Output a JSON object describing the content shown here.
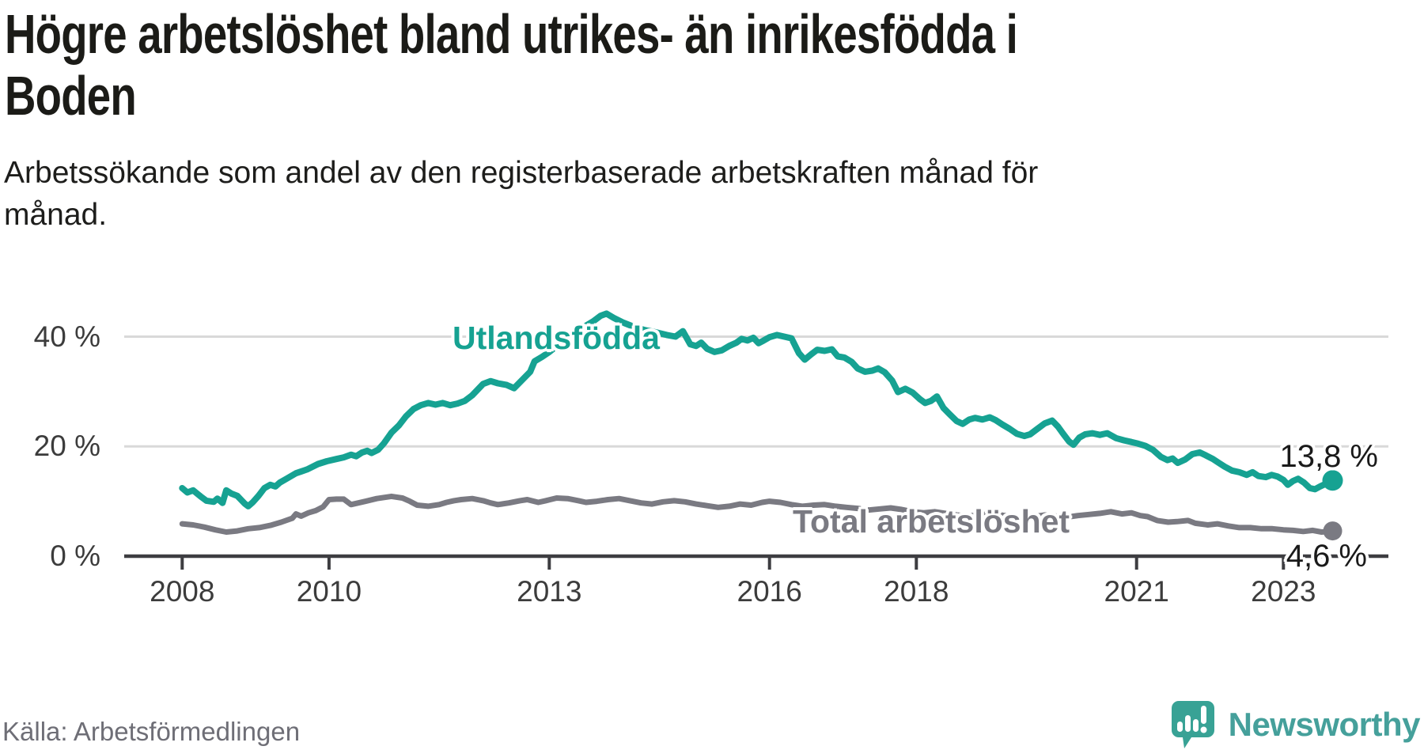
{
  "title": "Högre arbetslöshet bland utrikes- än inrikesfödda i Boden",
  "title_lines": {
    "line1": "Högre arbetslöshet bland utrikes- än inrikesfödda i",
    "line2": "Boden"
  },
  "subtitle_lines": {
    "line1": "Arbetssökande som andel av den registerbaserade arbetskraften månad för",
    "line2": "månad."
  },
  "source": "Källa: Arbetsförmedlingen",
  "brand": {
    "name": "Newsworthy",
    "logo_color": "#38a295",
    "text_color": "#45a09b"
  },
  "colors": {
    "accent_teal": "#16a292",
    "series_gray": "#7a7a82",
    "axis": "#3d3d41",
    "grid": "#d9d9d9",
    "text": "#1d1d1b",
    "tick_text": "#3c3c3c"
  },
  "chart_data": {
    "type": "line",
    "title": "Högre arbetslöshet bland utrikes- än inrikesfödda i Boden",
    "xlabel": "",
    "ylabel": "Arbetssökande som andel av den registerbaserade arbetskraften",
    "grid": "horizontal-only",
    "legend_position": "inline-labels",
    "x_axis": {
      "range_years": [
        2008.0,
        2024.4
      ],
      "ticks": [
        2008,
        2010,
        2013,
        2016,
        2018,
        2021,
        2023
      ],
      "labels": [
        "2008",
        "2010",
        "2013",
        "2016",
        "2018",
        "2021",
        "2023"
      ]
    },
    "y_axis": {
      "range": [
        0,
        45
      ],
      "ticks": [
        0,
        20,
        40
      ],
      "labels": [
        "0 %",
        "20 %",
        "40 %"
      ],
      "unit": "%"
    },
    "series": [
      {
        "id": "utlandsfodda",
        "name": "Utlandsfödda",
        "color": "#16a292",
        "end_label": "13,8 %",
        "end_value": 13.8,
        "points": [
          [
            2008.0,
            12.4
          ],
          [
            2008.07,
            11.6
          ],
          [
            2008.15,
            12.0
          ],
          [
            2008.25,
            10.9
          ],
          [
            2008.33,
            10.1
          ],
          [
            2008.43,
            9.9
          ],
          [
            2008.48,
            10.5
          ],
          [
            2008.55,
            9.7
          ],
          [
            2008.6,
            12.0
          ],
          [
            2008.67,
            11.4
          ],
          [
            2008.75,
            11.0
          ],
          [
            2008.8,
            10.3
          ],
          [
            2008.85,
            9.6
          ],
          [
            2008.9,
            9.1
          ],
          [
            2008.96,
            9.8
          ],
          [
            2009.04,
            11.0
          ],
          [
            2009.12,
            12.4
          ],
          [
            2009.2,
            13.0
          ],
          [
            2009.27,
            12.7
          ],
          [
            2009.33,
            13.4
          ],
          [
            2009.42,
            14.1
          ],
          [
            2009.55,
            15.1
          ],
          [
            2009.7,
            15.8
          ],
          [
            2009.85,
            16.8
          ],
          [
            2009.97,
            17.3
          ],
          [
            2010.1,
            17.7
          ],
          [
            2010.2,
            18.0
          ],
          [
            2010.3,
            18.5
          ],
          [
            2010.37,
            18.2
          ],
          [
            2010.45,
            18.9
          ],
          [
            2010.52,
            19.2
          ],
          [
            2010.58,
            18.8
          ],
          [
            2010.67,
            19.4
          ],
          [
            2010.75,
            20.6
          ],
          [
            2010.85,
            22.5
          ],
          [
            2010.95,
            23.8
          ],
          [
            2011.05,
            25.5
          ],
          [
            2011.15,
            26.8
          ],
          [
            2011.25,
            27.5
          ],
          [
            2011.35,
            27.9
          ],
          [
            2011.45,
            27.6
          ],
          [
            2011.55,
            27.9
          ],
          [
            2011.65,
            27.5
          ],
          [
            2011.75,
            27.8
          ],
          [
            2011.85,
            28.3
          ],
          [
            2011.95,
            29.3
          ],
          [
            2012.1,
            31.4
          ],
          [
            2012.2,
            31.9
          ],
          [
            2012.3,
            31.5
          ],
          [
            2012.42,
            31.2
          ],
          [
            2012.52,
            30.6
          ],
          [
            2012.63,
            32.1
          ],
          [
            2012.74,
            33.6
          ],
          [
            2012.8,
            35.5
          ],
          [
            2012.9,
            36.3
          ],
          [
            2013.0,
            37.2
          ],
          [
            2013.15,
            38.8
          ],
          [
            2013.3,
            40.2
          ],
          [
            2013.45,
            41.6
          ],
          [
            2013.6,
            42.8
          ],
          [
            2013.7,
            43.8
          ],
          [
            2013.78,
            44.2
          ],
          [
            2013.88,
            43.4
          ],
          [
            2014.0,
            42.6
          ],
          [
            2014.15,
            41.8
          ],
          [
            2014.3,
            41.2
          ],
          [
            2014.45,
            40.8
          ],
          [
            2014.6,
            40.3
          ],
          [
            2014.72,
            40.0
          ],
          [
            2014.82,
            41.0
          ],
          [
            2014.92,
            38.6
          ],
          [
            2015.0,
            38.3
          ],
          [
            2015.07,
            38.9
          ],
          [
            2015.15,
            37.8
          ],
          [
            2015.25,
            37.2
          ],
          [
            2015.35,
            37.5
          ],
          [
            2015.45,
            38.3
          ],
          [
            2015.55,
            38.9
          ],
          [
            2015.62,
            39.6
          ],
          [
            2015.7,
            39.3
          ],
          [
            2015.78,
            39.8
          ],
          [
            2015.85,
            38.8
          ],
          [
            2015.92,
            39.3
          ],
          [
            2016.0,
            39.9
          ],
          [
            2016.1,
            40.3
          ],
          [
            2016.2,
            40.0
          ],
          [
            2016.3,
            39.7
          ],
          [
            2016.4,
            37.0
          ],
          [
            2016.48,
            35.8
          ],
          [
            2016.57,
            36.8
          ],
          [
            2016.65,
            37.6
          ],
          [
            2016.75,
            37.4
          ],
          [
            2016.85,
            37.7
          ],
          [
            2016.93,
            36.4
          ],
          [
            2017.02,
            36.2
          ],
          [
            2017.12,
            35.4
          ],
          [
            2017.2,
            34.2
          ],
          [
            2017.3,
            33.6
          ],
          [
            2017.4,
            33.8
          ],
          [
            2017.48,
            34.2
          ],
          [
            2017.57,
            33.5
          ],
          [
            2017.67,
            32.0
          ],
          [
            2017.75,
            29.9
          ],
          [
            2017.85,
            30.5
          ],
          [
            2017.95,
            29.8
          ],
          [
            2018.05,
            28.6
          ],
          [
            2018.12,
            27.9
          ],
          [
            2018.2,
            28.3
          ],
          [
            2018.28,
            29.1
          ],
          [
            2018.37,
            27.0
          ],
          [
            2018.45,
            25.9
          ],
          [
            2018.55,
            24.6
          ],
          [
            2018.63,
            24.1
          ],
          [
            2018.72,
            24.9
          ],
          [
            2018.8,
            25.2
          ],
          [
            2018.9,
            24.9
          ],
          [
            2019.0,
            25.3
          ],
          [
            2019.08,
            24.8
          ],
          [
            2019.17,
            24.0
          ],
          [
            2019.27,
            23.2
          ],
          [
            2019.37,
            22.3
          ],
          [
            2019.47,
            21.9
          ],
          [
            2019.55,
            22.2
          ],
          [
            2019.65,
            23.2
          ],
          [
            2019.75,
            24.2
          ],
          [
            2019.85,
            24.7
          ],
          [
            2019.93,
            23.6
          ],
          [
            2020.0,
            22.3
          ],
          [
            2020.08,
            20.9
          ],
          [
            2020.14,
            20.3
          ],
          [
            2020.22,
            21.6
          ],
          [
            2020.3,
            22.2
          ],
          [
            2020.4,
            22.4
          ],
          [
            2020.5,
            22.1
          ],
          [
            2020.6,
            22.4
          ],
          [
            2020.72,
            21.5
          ],
          [
            2020.83,
            21.1
          ],
          [
            2020.93,
            20.8
          ],
          [
            2021.02,
            20.5
          ],
          [
            2021.12,
            20.1
          ],
          [
            2021.22,
            19.4
          ],
          [
            2021.33,
            18.1
          ],
          [
            2021.42,
            17.5
          ],
          [
            2021.49,
            17.8
          ],
          [
            2021.56,
            17.0
          ],
          [
            2021.66,
            17.6
          ],
          [
            2021.76,
            18.6
          ],
          [
            2021.86,
            18.9
          ],
          [
            2021.94,
            18.4
          ],
          [
            2022.04,
            17.7
          ],
          [
            2022.12,
            17.0
          ],
          [
            2022.2,
            16.3
          ],
          [
            2022.3,
            15.6
          ],
          [
            2022.4,
            15.3
          ],
          [
            2022.5,
            14.8
          ],
          [
            2022.58,
            15.3
          ],
          [
            2022.66,
            14.6
          ],
          [
            2022.76,
            14.4
          ],
          [
            2022.84,
            14.8
          ],
          [
            2022.92,
            14.5
          ],
          [
            2023.0,
            13.9
          ],
          [
            2023.06,
            13.0
          ],
          [
            2023.13,
            13.7
          ],
          [
            2023.2,
            14.1
          ],
          [
            2023.28,
            13.4
          ],
          [
            2023.36,
            12.4
          ],
          [
            2023.43,
            12.2
          ],
          [
            2023.5,
            12.7
          ],
          [
            2023.58,
            13.2
          ],
          [
            2023.67,
            13.8
          ]
        ]
      },
      {
        "id": "total",
        "name": "Total arbetslöshet",
        "color": "#7a7a82",
        "end_label": "4,6 %",
        "end_value": 4.6,
        "points": [
          [
            2008.0,
            5.9
          ],
          [
            2008.15,
            5.7
          ],
          [
            2008.3,
            5.3
          ],
          [
            2008.45,
            4.8
          ],
          [
            2008.6,
            4.4
          ],
          [
            2008.75,
            4.6
          ],
          [
            2008.9,
            5.0
          ],
          [
            2009.05,
            5.2
          ],
          [
            2009.2,
            5.6
          ],
          [
            2009.35,
            6.2
          ],
          [
            2009.5,
            6.9
          ],
          [
            2009.55,
            7.7
          ],
          [
            2009.62,
            7.3
          ],
          [
            2009.72,
            7.9
          ],
          [
            2009.82,
            8.3
          ],
          [
            2009.92,
            9.0
          ],
          [
            2010.0,
            10.3
          ],
          [
            2010.1,
            10.4
          ],
          [
            2010.2,
            10.4
          ],
          [
            2010.3,
            9.4
          ],
          [
            2010.4,
            9.7
          ],
          [
            2010.5,
            10.0
          ],
          [
            2010.65,
            10.5
          ],
          [
            2010.75,
            10.7
          ],
          [
            2010.85,
            10.9
          ],
          [
            2011.0,
            10.6
          ],
          [
            2011.1,
            10.0
          ],
          [
            2011.2,
            9.3
          ],
          [
            2011.35,
            9.1
          ],
          [
            2011.5,
            9.4
          ],
          [
            2011.6,
            9.8
          ],
          [
            2011.7,
            10.1
          ],
          [
            2011.8,
            10.3
          ],
          [
            2011.95,
            10.5
          ],
          [
            2012.1,
            10.1
          ],
          [
            2012.2,
            9.7
          ],
          [
            2012.3,
            9.4
          ],
          [
            2012.45,
            9.7
          ],
          [
            2012.6,
            10.1
          ],
          [
            2012.7,
            10.3
          ],
          [
            2012.85,
            9.8
          ],
          [
            2012.95,
            10.1
          ],
          [
            2013.1,
            10.6
          ],
          [
            2013.25,
            10.5
          ],
          [
            2013.4,
            10.1
          ],
          [
            2013.5,
            9.8
          ],
          [
            2013.65,
            10.0
          ],
          [
            2013.8,
            10.3
          ],
          [
            2013.95,
            10.5
          ],
          [
            2014.1,
            10.1
          ],
          [
            2014.25,
            9.7
          ],
          [
            2014.4,
            9.5
          ],
          [
            2014.55,
            9.9
          ],
          [
            2014.7,
            10.1
          ],
          [
            2014.85,
            9.9
          ],
          [
            2015.0,
            9.5
          ],
          [
            2015.15,
            9.2
          ],
          [
            2015.3,
            8.9
          ],
          [
            2015.45,
            9.1
          ],
          [
            2015.6,
            9.5
          ],
          [
            2015.75,
            9.3
          ],
          [
            2015.9,
            9.8
          ],
          [
            2016.0,
            10.0
          ],
          [
            2016.15,
            9.8
          ],
          [
            2016.3,
            9.4
          ],
          [
            2016.45,
            9.1
          ],
          [
            2016.6,
            9.3
          ],
          [
            2016.75,
            9.4
          ],
          [
            2016.9,
            9.1
          ],
          [
            2017.05,
            8.9
          ],
          [
            2017.2,
            8.7
          ],
          [
            2017.35,
            8.4
          ],
          [
            2017.5,
            8.6
          ],
          [
            2017.65,
            8.8
          ],
          [
            2017.8,
            8.5
          ],
          [
            2017.95,
            8.1
          ],
          [
            2018.1,
            7.9
          ],
          [
            2018.25,
            8.1
          ],
          [
            2018.4,
            7.8
          ],
          [
            2018.55,
            7.5
          ],
          [
            2018.7,
            7.3
          ],
          [
            2018.85,
            7.5
          ],
          [
            2019.0,
            7.7
          ],
          [
            2019.15,
            7.5
          ],
          [
            2019.3,
            7.2
          ],
          [
            2019.45,
            7.0
          ],
          [
            2019.6,
            7.2
          ],
          [
            2019.75,
            7.5
          ],
          [
            2019.9,
            7.3
          ],
          [
            2020.05,
            7.1
          ],
          [
            2020.2,
            7.4
          ],
          [
            2020.35,
            7.6
          ],
          [
            2020.5,
            7.8
          ],
          [
            2020.65,
            8.1
          ],
          [
            2020.8,
            7.7
          ],
          [
            2020.93,
            7.9
          ],
          [
            2021.05,
            7.4
          ],
          [
            2021.15,
            7.2
          ],
          [
            2021.28,
            6.5
          ],
          [
            2021.43,
            6.2
          ],
          [
            2021.55,
            6.3
          ],
          [
            2021.7,
            6.5
          ],
          [
            2021.8,
            6.0
          ],
          [
            2021.97,
            5.7
          ],
          [
            2022.1,
            5.9
          ],
          [
            2022.25,
            5.5
          ],
          [
            2022.4,
            5.2
          ],
          [
            2022.55,
            5.2
          ],
          [
            2022.7,
            5.0
          ],
          [
            2022.85,
            5.0
          ],
          [
            2023.0,
            4.8
          ],
          [
            2023.13,
            4.7
          ],
          [
            2023.27,
            4.5
          ],
          [
            2023.4,
            4.7
          ],
          [
            2023.52,
            4.4
          ],
          [
            2023.6,
            4.5
          ],
          [
            2023.67,
            4.6
          ]
        ]
      }
    ]
  }
}
